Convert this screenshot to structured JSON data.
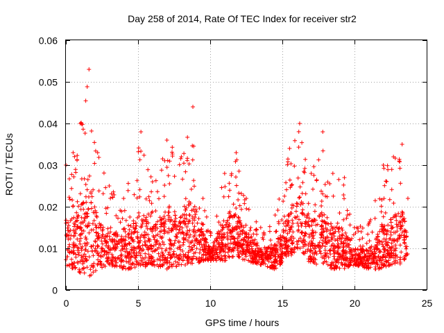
{
  "chart_data": {
    "type": "scatter",
    "title": "Day 258 of 2014, Rate Of TEC Index for receiver str2",
    "xlabel": "GPS time / hours",
    "ylabel": "ROTI / TECUs",
    "xlim": [
      0,
      25
    ],
    "ylim": [
      0,
      0.06
    ],
    "xticks": [
      0,
      5,
      10,
      15,
      20,
      25
    ],
    "xtick_labels": [
      "0",
      "5",
      "10",
      "15",
      "20",
      "25"
    ],
    "yticks": [
      0,
      0.01,
      0.02,
      0.03,
      0.04,
      0.05,
      0.06
    ],
    "ytick_labels": [
      "0",
      "0.01",
      "0.02",
      "0.03",
      "0.04",
      "0.05",
      "0.06"
    ],
    "grid": true,
    "marker": "+",
    "color": "#ff0000",
    "series_name": "ROTI",
    "point_density_note": "approx. 6000 samples between 0 and 23.7 h",
    "envelope": [
      {
        "x": 0.0,
        "lo": 0.006,
        "hi": 0.03
      },
      {
        "x": 0.5,
        "lo": 0.005,
        "hi": 0.033
      },
      {
        "x": 1.0,
        "lo": 0.004,
        "hi": 0.04
      },
      {
        "x": 1.6,
        "lo": 0.003,
        "hi": 0.053
      },
      {
        "x": 2.2,
        "lo": 0.005,
        "hi": 0.033
      },
      {
        "x": 3.0,
        "lo": 0.006,
        "hi": 0.025
      },
      {
        "x": 4.0,
        "lo": 0.005,
        "hi": 0.022
      },
      {
        "x": 5.2,
        "lo": 0.005,
        "hi": 0.038
      },
      {
        "x": 6.0,
        "lo": 0.006,
        "hi": 0.026
      },
      {
        "x": 7.0,
        "lo": 0.005,
        "hi": 0.036
      },
      {
        "x": 8.0,
        "lo": 0.006,
        "hi": 0.032
      },
      {
        "x": 8.8,
        "lo": 0.006,
        "hi": 0.044
      },
      {
        "x": 9.5,
        "lo": 0.007,
        "hi": 0.022
      },
      {
        "x": 10.0,
        "lo": 0.007,
        "hi": 0.014
      },
      {
        "x": 11.0,
        "lo": 0.007,
        "hi": 0.028
      },
      {
        "x": 11.8,
        "lo": 0.008,
        "hi": 0.033
      },
      {
        "x": 12.5,
        "lo": 0.007,
        "hi": 0.022
      },
      {
        "x": 13.5,
        "lo": 0.006,
        "hi": 0.015
      },
      {
        "x": 14.5,
        "lo": 0.005,
        "hi": 0.018
      },
      {
        "x": 15.5,
        "lo": 0.008,
        "hi": 0.034
      },
      {
        "x": 16.2,
        "lo": 0.01,
        "hi": 0.04
      },
      {
        "x": 17.0,
        "lo": 0.006,
        "hi": 0.028
      },
      {
        "x": 17.8,
        "lo": 0.006,
        "hi": 0.038
      },
      {
        "x": 18.5,
        "lo": 0.005,
        "hi": 0.028
      },
      {
        "x": 19.3,
        "lo": 0.005,
        "hi": 0.027
      },
      {
        "x": 20.0,
        "lo": 0.006,
        "hi": 0.015
      },
      {
        "x": 21.0,
        "lo": 0.005,
        "hi": 0.016
      },
      {
        "x": 22.0,
        "lo": 0.005,
        "hi": 0.03
      },
      {
        "x": 22.7,
        "lo": 0.006,
        "hi": 0.032
      },
      {
        "x": 23.3,
        "lo": 0.006,
        "hi": 0.035
      },
      {
        "x": 23.7,
        "lo": 0.008,
        "hi": 0.022
      }
    ]
  }
}
